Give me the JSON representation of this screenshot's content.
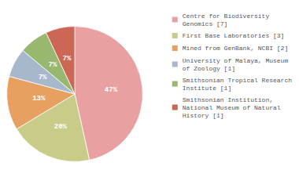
{
  "chart_data": {
    "type": "pie",
    "categories": [
      "Centre for Biodiversity\nGenomics [7]",
      "First Base Laboratories [3]",
      "Mined from GenBank, NCBI [2]",
      "University of Malaya, Museum\nof Zoology [1]",
      "Smithsonian Tropical Research\nInstitute [1]",
      "Smithsonian Institution,\nNational Museum of Natural\nHistory [1]"
    ],
    "values": [
      47,
      20,
      13,
      7,
      7,
      7
    ],
    "value_labels": [
      "47%",
      "20%",
      "13%",
      "7%",
      "7%",
      "7%"
    ],
    "colors": [
      "#e8a0a0",
      "#c8cc88",
      "#e8a060",
      "#a8b8cc",
      "#98b870",
      "#cc6655"
    ],
    "data_labels": true,
    "legend": "upper right"
  }
}
